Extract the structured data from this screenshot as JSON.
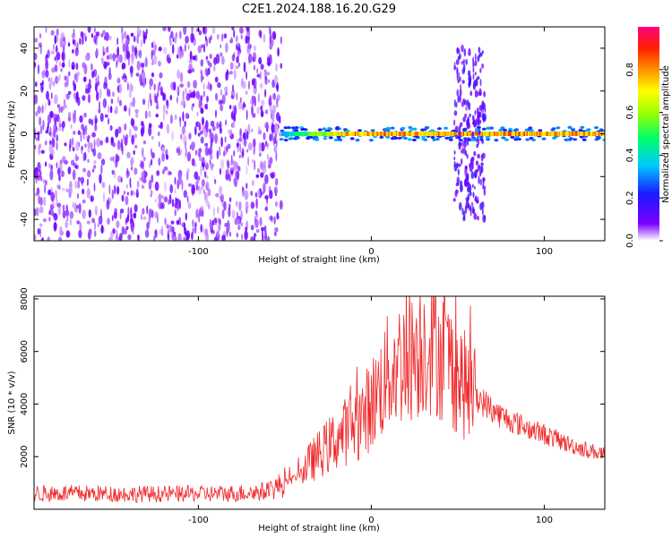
{
  "figure": {
    "title": "C2E1.2024.188.16.20.G29"
  },
  "chart_data": [
    {
      "type": "heatmap",
      "xlabel": "Height of straight line (km)",
      "ylabel": "Frequency (Hz)",
      "xlim": [
        -195,
        135
      ],
      "ylim": [
        -50,
        50
      ],
      "x_ticks": [
        "-100",
        "0",
        "100"
      ],
      "y_ticks": [
        "-40",
        "-20",
        "0",
        "20",
        "40"
      ],
      "colorbar": {
        "label": "Normalized spectral amplitude",
        "range": [
          0.0,
          1.0
        ],
        "ticks": [
          "0.0",
          "0.2",
          "0.4",
          "0.6",
          "0.8"
        ],
        "colormap": "hsv-rainbow (white-purple-blue-cyan-green-yellow-orange-red-magenta)"
      },
      "regions": [
        {
          "x_range": [
            -195,
            -52
          ],
          "f_range": [
            -50,
            50
          ],
          "amplitude": 0.1,
          "description": "broadband noise"
        },
        {
          "x_range": [
            -52,
            135
          ],
          "f_center": 0,
          "f_halfwidth": 3,
          "amplitude": 0.85,
          "description": "narrow carrier line"
        },
        {
          "x_range": [
            48,
            66
          ],
          "f_range": [
            -40,
            40
          ],
          "amplitude": 0.15,
          "description": "spread burst"
        }
      ]
    },
    {
      "type": "line",
      "xlabel": "Height of straight line (km)",
      "ylabel": "SNR (10 * v/v)",
      "xlim": [
        -195,
        135
      ],
      "ylim": [
        0,
        8100
      ],
      "x_ticks": [
        "-100",
        "0",
        "100"
      ],
      "y_ticks": [
        "2000",
        "4000",
        "6000",
        "8000"
      ],
      "line_color": "#f0282a",
      "x": [
        -195,
        -170,
        -140,
        -110,
        -80,
        -60,
        -45,
        -35,
        -25,
        -15,
        -5,
        0,
        10,
        20,
        30,
        35,
        45,
        55,
        65,
        75,
        90,
        100,
        115,
        125,
        135
      ],
      "y": [
        600,
        600,
        580,
        580,
        600,
        680,
        1150,
        1800,
        2400,
        2950,
        3500,
        4000,
        5200,
        5800,
        6300,
        6400,
        5600,
        4600,
        4050,
        3550,
        3100,
        2850,
        2450,
        2250,
        2100
      ]
    }
  ]
}
